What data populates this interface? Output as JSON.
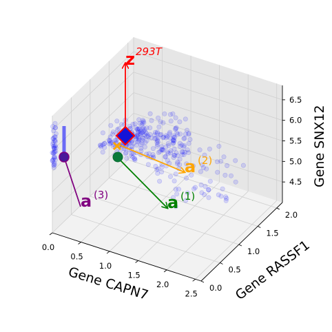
{
  "chart_data": {
    "type": "scatter",
    "projection": "3d",
    "title": "",
    "xlabel": "Gene CAPN7",
    "ylabel": "Gene RASSF1",
    "zlabel": "Gene SNX12",
    "xlim": [
      0.0,
      2.6
    ],
    "ylim": [
      0.0,
      2.15
    ],
    "zlim": [
      4.0,
      6.85
    ],
    "xticks": [
      "0.0",
      "0.5",
      "1.0",
      "1.5",
      "2.0",
      "2.5"
    ],
    "yticks": [
      "0.0",
      "0.5",
      "1.0",
      "1.5",
      "2.0"
    ],
    "zticks": [
      "4.5",
      "5.0",
      "5.5",
      "6.0",
      "6.5"
    ],
    "grid": true,
    "points_color": "#0000ff",
    "points_alpha": 0.12,
    "point_clusters": [
      {
        "region": "upper-left cloud",
        "x": [
          0.6,
          1.1
        ],
        "y": [
          0.3,
          0.9
        ],
        "z": [
          5.9,
          6.5
        ],
        "count": 120
      },
      {
        "region": "central cloud",
        "x": [
          0.8,
          1.6
        ],
        "y": [
          0.7,
          1.5
        ],
        "z": [
          5.3,
          6.2
        ],
        "count": 140
      },
      {
        "region": "lower spread",
        "x": [
          0.9,
          2.2
        ],
        "y": [
          0.9,
          1.9
        ],
        "z": [
          4.3,
          5.4
        ],
        "count": 60
      },
      {
        "region": "x=0 column",
        "x": [
          0.0,
          0.0
        ],
        "y": [
          0.0,
          0.1
        ],
        "z": [
          5.5,
          6.6
        ],
        "count": 40
      }
    ],
    "vectors": [
      {
        "label": "z",
        "superscript": "293T",
        "color": "#ff0000",
        "marker": "diamond"
      },
      {
        "label": "a",
        "superscript": "(1)",
        "color": "#008000",
        "marker": "circle"
      },
      {
        "label": "a",
        "superscript": "(2)",
        "color": "#ffa500",
        "marker": "x"
      },
      {
        "label": "a",
        "superscript": "(3)",
        "color": "#800080",
        "marker": "circle"
      }
    ]
  }
}
